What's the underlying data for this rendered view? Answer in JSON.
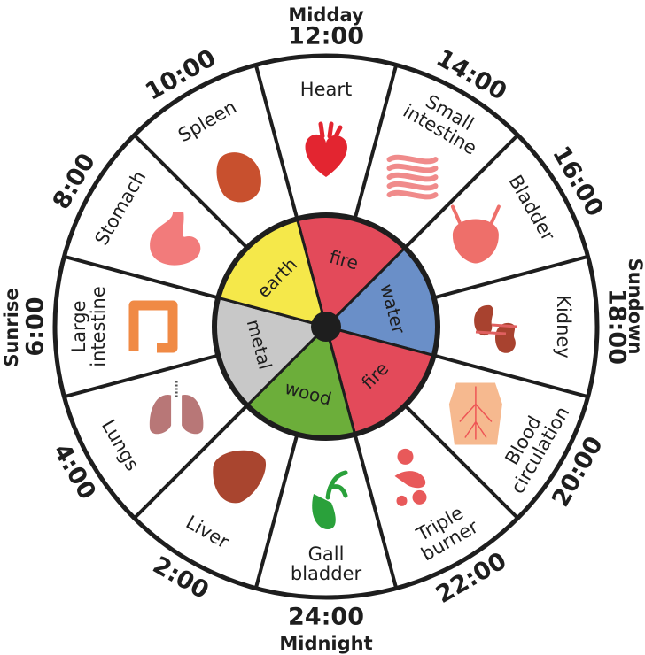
{
  "markers": {
    "top": "Midday",
    "right": "Sundown",
    "bottom": "Midnight",
    "left": "Sunrise"
  },
  "times": [
    "12:00",
    "14:00",
    "16:00",
    "18:00",
    "20:00",
    "22:00",
    "24:00",
    "2:00",
    "4:00",
    "6:00",
    "8:00",
    "10:00"
  ],
  "organs": [
    {
      "lines": [
        "Heart"
      ],
      "icon": "heart-icon",
      "color": "#e32530"
    },
    {
      "lines": [
        "Small",
        "intestine"
      ],
      "icon": "small-intestine-icon",
      "color": "#f08b8b"
    },
    {
      "lines": [
        "Bladder"
      ],
      "icon": "bladder-icon",
      "color": "#ee6f6a"
    },
    {
      "lines": [
        "Kidney"
      ],
      "icon": "kidney-icon",
      "color": "#a8422f"
    },
    {
      "lines": [
        "Blood",
        "circulation"
      ],
      "icon": "blood-circulation-icon",
      "color": "#f6b98f"
    },
    {
      "lines": [
        "Triple",
        "burner"
      ],
      "icon": "triple-burner-icon",
      "color": "#e8595a"
    },
    {
      "lines": [
        "Gall",
        "bladder"
      ],
      "icon": "gall-bladder-icon",
      "color": "#2aa13b"
    },
    {
      "lines": [
        "Liver"
      ],
      "icon": "liver-icon",
      "color": "#a9452f"
    },
    {
      "lines": [
        "Lungs"
      ],
      "icon": "lungs-icon",
      "color": "#b87777"
    },
    {
      "lines": [
        "Large",
        "intestine"
      ],
      "icon": "large-intestine-icon",
      "color": "#f08a45"
    },
    {
      "lines": [
        "Stomach"
      ],
      "icon": "stomach-icon",
      "color": "#f27b7b"
    },
    {
      "lines": [
        "Spleen"
      ],
      "icon": "spleen-icon",
      "color": "#c8502e"
    }
  ],
  "elements": [
    {
      "label": "fire",
      "color": "#e34a5a"
    },
    {
      "label": "water",
      "color": "#6a8fc8"
    },
    {
      "label": "fire",
      "color": "#e34a5a"
    },
    {
      "label": "wood",
      "color": "#6cae3a"
    },
    {
      "label": "metal",
      "color": "#c8c8c8"
    },
    {
      "label": "earth",
      "color": "#f5e84a"
    }
  ],
  "colors": {
    "outline": "#1e1e1e",
    "background": "#ffffff",
    "hub": "#1e1e1e"
  }
}
